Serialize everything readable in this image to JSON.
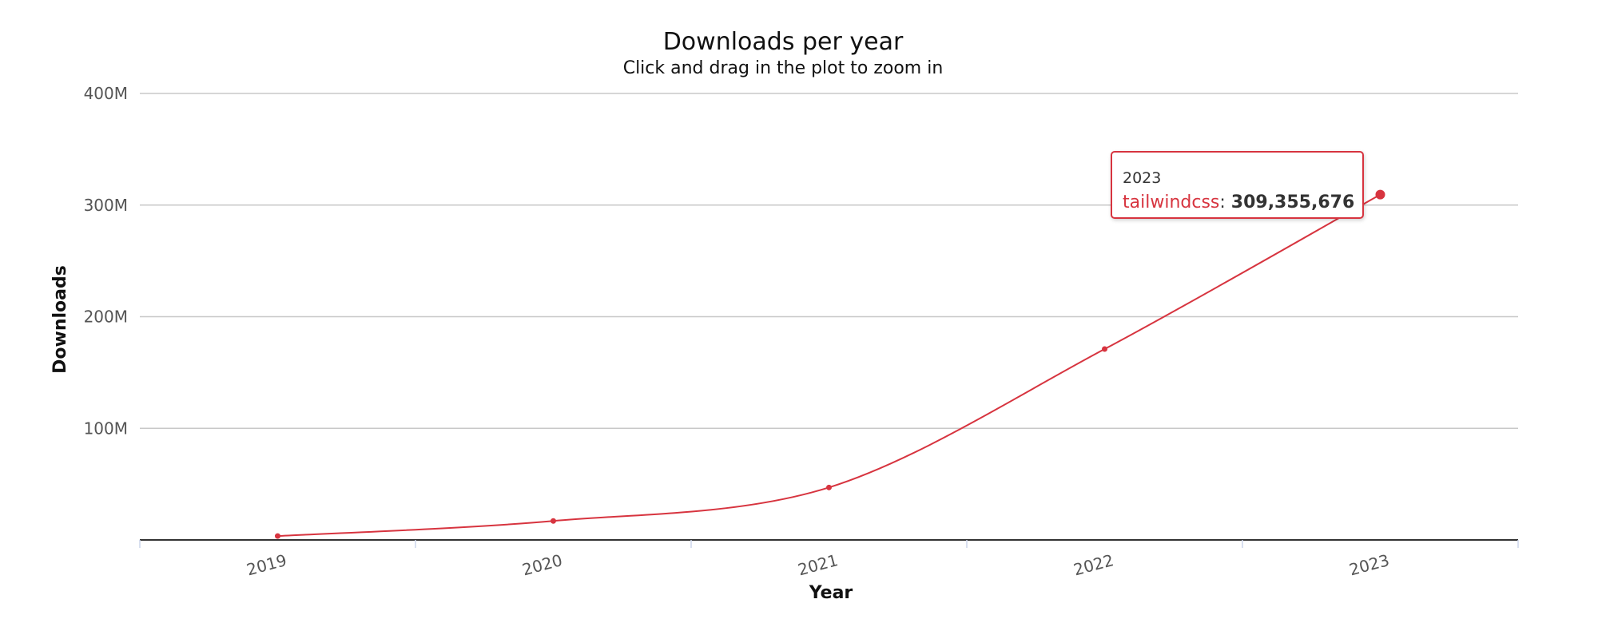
{
  "chart_data": {
    "type": "line",
    "title": "Downloads per year",
    "subtitle": "Click and drag in the plot to zoom in",
    "xlabel": "Year",
    "ylabel": "Downloads",
    "categories": [
      "2019",
      "2020",
      "2021",
      "2022",
      "2023"
    ],
    "series": [
      {
        "name": "tailwindcss",
        "color": "#d7343f",
        "values": [
          3500000,
          17000000,
          47000000,
          171000000,
          309355676
        ]
      }
    ],
    "ylim": [
      0,
      400000000
    ],
    "yticks": [
      {
        "value": 100000000,
        "label": "100M"
      },
      {
        "value": 200000000,
        "label": "200M"
      },
      {
        "value": 300000000,
        "label": "300M"
      },
      {
        "value": 400000000,
        "label": "400M"
      }
    ],
    "grid": true,
    "legend": "none"
  },
  "tooltip": {
    "year": "2023",
    "series_name": "tailwindcss",
    "separator": ": ",
    "value_text": "309,355,676",
    "border_color": "#d7343f"
  }
}
